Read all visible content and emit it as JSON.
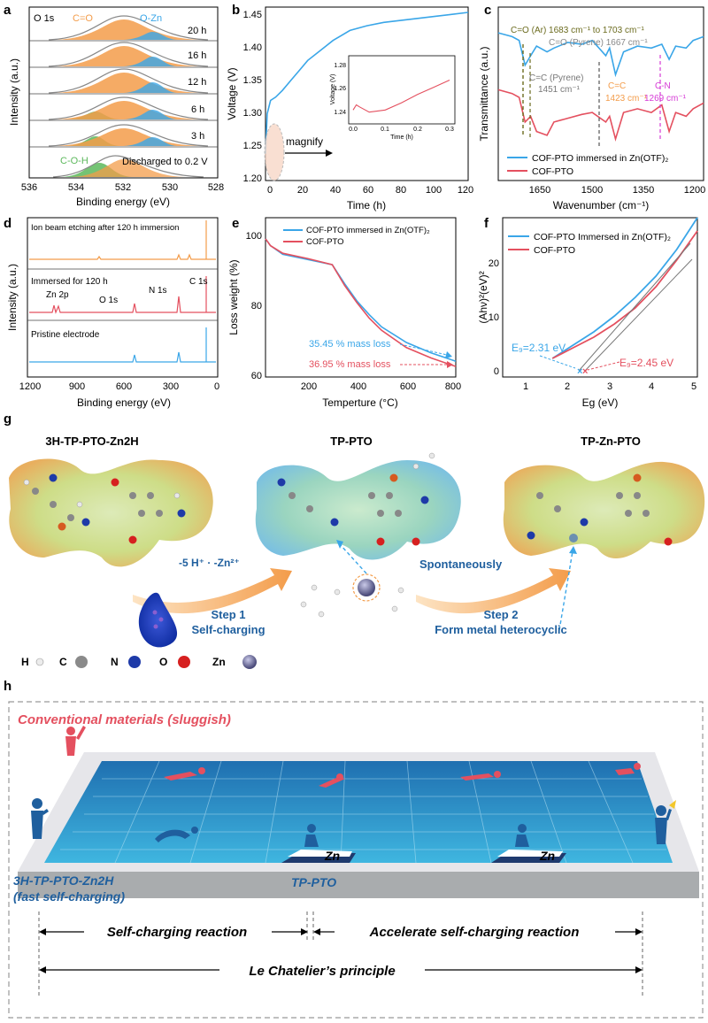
{
  "colors": {
    "blue": "#3aa6e8",
    "red": "#e4505f",
    "orange": "#f39c4a",
    "green": "#5cb85c",
    "gray": "#9a9a9a",
    "olive": "#6b6b1e",
    "magenta": "#d63bd6",
    "darkblue": "#1f5f9e",
    "pool": "#2f8fc8"
  },
  "panels": {
    "a": {
      "letter": "a",
      "xlabel": "Binding energy (eV)",
      "ylabel": "Intensity (a.u.)",
      "xticks": [
        "536",
        "534",
        "532",
        "530",
        "528"
      ],
      "labels": {
        "o1s": "O 1s",
        "co": "C=O",
        "ozn": "O-Zn",
        "coh": "C-O-H"
      },
      "rows": [
        "20 h",
        "16 h",
        "12 h",
        "6 h",
        "3 h",
        "Discharged to 0.2 V"
      ]
    },
    "b": {
      "letter": "b",
      "xlabel": "Time (h)",
      "ylabel": "Voltage (V)",
      "xticks": [
        "0",
        "20",
        "40",
        "60",
        "80",
        "100",
        "120"
      ],
      "yticks": [
        "1.20",
        "1.25",
        "1.30",
        "1.35",
        "1.40",
        "1.45"
      ],
      "magnify": "magnify",
      "inset": {
        "xlabel": "Time (h)",
        "ylabel": "Voltage (V)",
        "xticks": [
          "0.0",
          "0.1",
          "0.2",
          "0.3"
        ],
        "yticks": [
          "1.24",
          "1.26",
          "1.28"
        ]
      }
    },
    "c": {
      "letter": "c",
      "xlabel": "Wavenumber (cm⁻¹)",
      "ylabel": "Transmittance (a.u.)",
      "xticks": [
        "1650",
        "1500",
        "1350",
        "1200"
      ],
      "ann_co_ar": "C=O (Ar) 1683 cm⁻¹ to 1703 cm⁻¹",
      "ann_co_py": "C=O (Pyrene) 1667 cm⁻¹",
      "ann_cc_py1": "C=C (Pyrene)",
      "ann_cc_py2": "1451 cm⁻¹",
      "ann_cc1": "C=C",
      "ann_cc2": "1423 cm⁻¹",
      "ann_cn1": "C-N",
      "ann_cn2": "1269 cm⁻¹",
      "legend": [
        "COF-PTO immersed in Zn(OTF)₂",
        "COF-PTO"
      ]
    },
    "d": {
      "letter": "d",
      "xlabel": "Binding energy (eV)",
      "ylabel": "Intensity (a.u.)",
      "xticks": [
        "1200",
        "900",
        "600",
        "300",
        "0"
      ],
      "rows": [
        "Ion beam etching after 120 h immersion",
        "Immersed for 120 h",
        "Pristine electrode"
      ],
      "peaks": {
        "zn": "Zn 2p",
        "o": "O 1s",
        "n": "N 1s",
        "c": "C 1s"
      }
    },
    "e": {
      "letter": "e",
      "xlabel": "Temperture (°C)",
      "ylabel": "Loss weight (%)",
      "xticks": [
        "200",
        "400",
        "600",
        "800"
      ],
      "yticks": [
        "60",
        "80",
        "100"
      ],
      "legend": [
        "COF-PTO immersed in Zn(OTF)₂",
        "COF-PTO"
      ],
      "ann_blue": "35.45 % mass loss",
      "ann_red": "36.95 % mass loss"
    },
    "f": {
      "letter": "f",
      "xlabel": "Eg (eV)",
      "ylabel": "(Ahν)²(eV)²",
      "xticks": [
        "1",
        "2",
        "3",
        "4",
        "5"
      ],
      "yticks": [
        "0",
        "10",
        "20"
      ],
      "legend": [
        "COF-PTO Immersed in Zn(OTF)₂",
        "COF-PTO"
      ],
      "eg_blue": "E₉=2.31 eV",
      "eg_red": "E₉=2.45 eV"
    },
    "g": {
      "letter": "g",
      "mol1": "3H-TP-PTO-Zn2H",
      "mol2": "TP-PTO",
      "mol3": "TP-Zn-PTO",
      "ions": "-5 H⁺  ·  -Zn²⁺",
      "step1a": "Step 1",
      "step1b": "Self-charging",
      "spont": "Spontaneously",
      "step2a": "Step 2",
      "step2b": "Form metal heterocyclic",
      "legend": [
        "H",
        "C",
        "N",
        "O",
        "Zn"
      ]
    },
    "h": {
      "letter": "h",
      "conventional": "Conventional materials (sluggish)",
      "fast1": "3H-TP-PTO-Zn2H",
      "fast2": "(fast self-charging)",
      "tppto": "TP-PTO",
      "zn": "Zn",
      "arrow1": "Self-charging reaction",
      "arrow2": "Accelerate self-charging reaction",
      "arrow3": "Le Chatelier’s principle"
    }
  },
  "chart_data": [
    {
      "type": "area",
      "panel": "a",
      "title": "",
      "xlabel": "Binding energy (eV)",
      "ylabel": "Intensity (a.u.)",
      "xlim": [
        536,
        528
      ],
      "series_names": [
        "C=O",
        "O-Zn",
        "C-O-H"
      ],
      "rows": [
        "20 h",
        "16 h",
        "12 h",
        "6 h",
        "3 h",
        "Discharged to 0.2 V"
      ],
      "peak_centers_eV": {
        "C=O": 532.3,
        "O-Zn": 531.0,
        "C-O-H": 533.6
      }
    },
    {
      "type": "line",
      "panel": "b",
      "xlabel": "Time (h)",
      "ylabel": "Voltage (V)",
      "xlim": [
        0,
        120
      ],
      "ylim": [
        1.2,
        1.46
      ],
      "x": [
        0,
        1,
        3,
        6,
        10,
        15,
        20,
        25,
        30,
        35,
        40,
        50,
        60,
        70,
        80,
        90,
        100,
        110,
        120
      ],
      "y": [
        1.24,
        1.3,
        1.32,
        1.325,
        1.335,
        1.35,
        1.365,
        1.38,
        1.39,
        1.4,
        1.41,
        1.425,
        1.432,
        1.437,
        1.44,
        1.443,
        1.446,
        1.449,
        1.452
      ],
      "inset": {
        "xlim": [
          0,
          0.3
        ],
        "ylim": [
          1.23,
          1.29
        ],
        "x": [
          0,
          0.01,
          0.02,
          0.05,
          0.1,
          0.15,
          0.2,
          0.25,
          0.3
        ],
        "y": [
          1.24,
          1.245,
          1.243,
          1.238,
          1.24,
          1.247,
          1.255,
          1.262,
          1.269
        ]
      }
    },
    {
      "type": "line",
      "panel": "c",
      "xlabel": "Wavenumber (cm⁻¹)",
      "ylabel": "Transmittance (a.u.)",
      "xlim": [
        1760,
        1170
      ],
      "series": [
        {
          "name": "COF-PTO immersed in Zn(OTF)₂",
          "x": [
            1760,
            1720,
            1700,
            1683,
            1667,
            1650,
            1620,
            1600,
            1560,
            1520,
            1490,
            1451,
            1440,
            1423,
            1400,
            1360,
            1320,
            1290,
            1269,
            1250,
            1220,
            1200,
            1170
          ],
          "y": [
            0.92,
            0.9,
            0.88,
            0.75,
            0.8,
            0.85,
            0.82,
            0.84,
            0.87,
            0.86,
            0.88,
            0.8,
            0.84,
            0.7,
            0.82,
            0.85,
            0.84,
            0.86,
            0.78,
            0.85,
            0.84,
            0.88,
            0.9
          ]
        },
        {
          "name": "COF-PTO",
          "x": [
            1760,
            1720,
            1700,
            1683,
            1667,
            1650,
            1620,
            1600,
            1560,
            1520,
            1490,
            1451,
            1440,
            1423,
            1400,
            1360,
            1320,
            1290,
            1269,
            1250,
            1220,
            1200,
            1170
          ],
          "y": [
            0.62,
            0.6,
            0.58,
            0.45,
            0.48,
            0.4,
            0.38,
            0.45,
            0.47,
            0.49,
            0.5,
            0.45,
            0.48,
            0.36,
            0.5,
            0.52,
            0.5,
            0.54,
            0.4,
            0.5,
            0.48,
            0.52,
            0.55
          ]
        }
      ]
    },
    {
      "type": "line",
      "panel": "d",
      "xlabel": "Binding energy (eV)",
      "ylabel": "Intensity (a.u.)",
      "xlim": [
        1200,
        0
      ],
      "series_names": [
        "Ion beam etching after 120 h immersion",
        "Immersed for 120 h",
        "Pristine electrode"
      ],
      "peaks_eV": {
        "Zn 2p": 1022,
        "O 1s": 531,
        "N 1s": 399,
        "C 1s": 285
      }
    },
    {
      "type": "line",
      "panel": "e",
      "xlabel": "Temperture (°C)",
      "ylabel": "Loss weight (%)",
      "xlim": [
        30,
        800
      ],
      "ylim": [
        60,
        102
      ],
      "series": [
        {
          "name": "COF-PTO immersed in Zn(OTF)₂",
          "x": [
            30,
            50,
            100,
            200,
            300,
            350,
            400,
            450,
            500,
            600,
            700,
            800
          ],
          "y": [
            100,
            98,
            95.5,
            94,
            92.5,
            87,
            82,
            78,
            74.5,
            70,
            67,
            64.55
          ]
        },
        {
          "name": "COF-PTO",
          "x": [
            30,
            50,
            100,
            200,
            300,
            350,
            400,
            450,
            500,
            600,
            700,
            800
          ],
          "y": [
            100,
            98,
            95.8,
            94.3,
            92.5,
            86.5,
            81.5,
            77,
            73.5,
            68.5,
            65.5,
            63.05
          ]
        }
      ]
    },
    {
      "type": "line",
      "panel": "f",
      "xlabel": "Eg (eV)",
      "ylabel": "(Ahν)²(eV)²",
      "xlim": [
        0.3,
        5
      ],
      "ylim": [
        -2,
        28
      ],
      "series": [
        {
          "name": "COF-PTO Immersed in Zn(OTF)₂",
          "x": [
            1.5,
            2,
            2.5,
            3,
            3.5,
            4,
            4.5,
            5
          ],
          "y": [
            1.5,
            4,
            6.5,
            9.5,
            13,
            17,
            22,
            28
          ]
        },
        {
          "name": "COF-PTO",
          "x": [
            1.5,
            2,
            2.5,
            3,
            3.5,
            4,
            4.5,
            5
          ],
          "y": [
            1.5,
            3.5,
            5.5,
            8,
            11,
            15,
            20,
            25.5
          ]
        }
      ],
      "Eg": {
        "COF-PTO Immersed in Zn(OTF)₂": 2.31,
        "COF-PTO": 2.45
      }
    }
  ]
}
